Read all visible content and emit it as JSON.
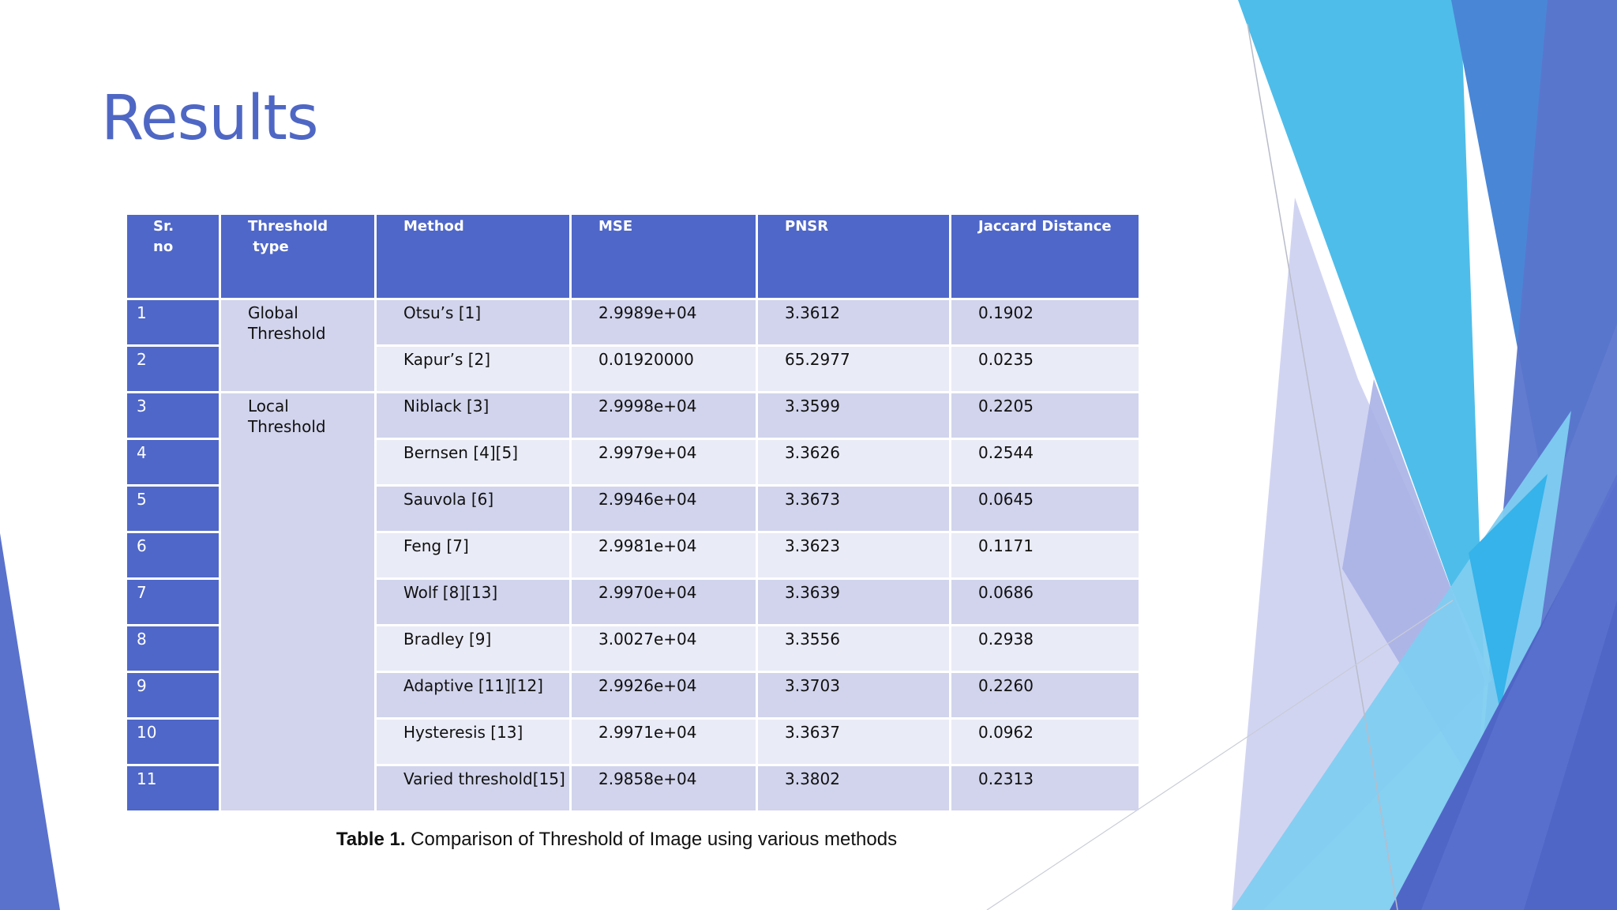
{
  "slide": {
    "title": "Results",
    "colors": {
      "title": "#4f67c4",
      "header_bg": "#4f67c8",
      "row_odd": "#d1d4ec",
      "row_even": "#e9ebf6"
    }
  },
  "table": {
    "headers": [
      [
        "Sr.",
        "no"
      ],
      [
        "Threshold",
        " type"
      ],
      [
        "Method"
      ],
      [
        "MSE"
      ],
      [
        "PNSR"
      ],
      [
        "Jaccard Distance"
      ]
    ],
    "groups": [
      {
        "label": [
          "Global",
          "Threshold"
        ],
        "rowspan": 2
      },
      {
        "label": [
          "Local",
          "Threshold"
        ],
        "rowspan": 9
      }
    ],
    "rows": [
      {
        "sr": "1",
        "method": "Otsu’s [1]",
        "mse": "2.9989e+04",
        "pnsr": "3.3612",
        "jaccard": "0.1902"
      },
      {
        "sr": "2",
        "method": "Kapur’s [2]",
        "mse": "0.01920000",
        "pnsr": "65.2977",
        "jaccard": "0.0235"
      },
      {
        "sr": "3",
        "method": "Niblack [3]",
        "mse": "2.9998e+04",
        "pnsr": "3.3599",
        "jaccard": "0.2205"
      },
      {
        "sr": "4",
        "method": "Bernsen [4][5]",
        "mse": "2.9979e+04",
        "pnsr": "3.3626",
        "jaccard": "0.2544"
      },
      {
        "sr": "5",
        "method": "Sauvola [6]",
        "mse": "2.9946e+04",
        "pnsr": "3.3673",
        "jaccard": "0.0645"
      },
      {
        "sr": "6",
        "method": "Feng [7]",
        "mse": "2.9981e+04",
        "pnsr": "3.3623",
        "jaccard": "0.1171"
      },
      {
        "sr": "7",
        "method": "Wolf [8][13]",
        "mse": "2.9970e+04",
        "pnsr": "3.3639",
        "jaccard": "0.0686"
      },
      {
        "sr": "8",
        "method": "Bradley [9]",
        "mse": "3.0027e+04",
        "pnsr": "3.3556",
        "jaccard": "0.2938"
      },
      {
        "sr": "9",
        "method": "Adaptive [11][12]",
        "mse": "2.9926e+04",
        "pnsr": "3.3703",
        "jaccard": "0.2260"
      },
      {
        "sr": "10",
        "method": "Hysteresis [13]",
        "mse": "2.9971e+04",
        "pnsr": "3.3637",
        "jaccard": "0.0962"
      },
      {
        "sr": "11",
        "method": "Varied threshold[15]",
        "mse": "2.9858e+04",
        "pnsr": "3.3802",
        "jaccard": "0.2313"
      }
    ]
  },
  "caption": {
    "label": "Table 1.",
    "text": " Comparison of Threshold of Image using various methods"
  }
}
